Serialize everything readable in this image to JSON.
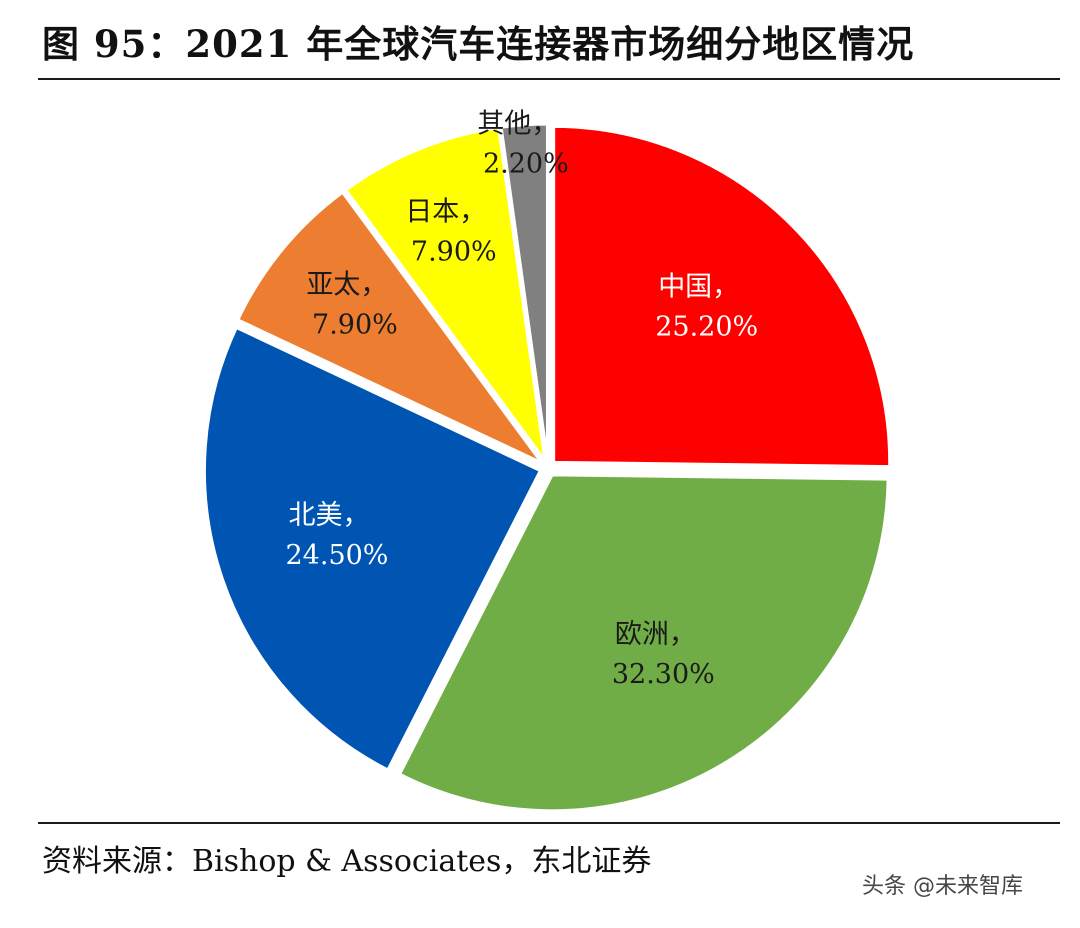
{
  "header": {
    "title": "图 95：2021 年全球汽车连接器市场细分地区情况"
  },
  "footer": {
    "source": "资料来源：Bishop & Associates，东北证券",
    "watermark": "头条 @未来智库"
  },
  "chart_data": {
    "type": "pie",
    "title": "图 95：2021 年全球汽车连接器市场细分地区情况",
    "unit": "%",
    "start_angle_deg": 0,
    "direction": "clockwise",
    "exploded": true,
    "slices": [
      {
        "name": "中国",
        "value": 25.2,
        "display": "25.20%",
        "color": "#ff0000",
        "label_color": "#ffffff"
      },
      {
        "name": "欧洲",
        "value": 32.3,
        "display": "32.30%",
        "color": "#70ad47",
        "label_color": "#1a1a1a"
      },
      {
        "name": "北美",
        "value": 24.5,
        "display": "24.50%",
        "color": "#0055b3",
        "label_color": "#ffffff"
      },
      {
        "name": "亚太",
        "value": 7.9,
        "display": "7.90%",
        "color": "#ed7d31",
        "label_color": "#1a1a1a"
      },
      {
        "name": "日本",
        "value": 7.9,
        "display": "7.90%",
        "color": "#ffff00",
        "label_color": "#1a1a1a"
      },
      {
        "name": "其他",
        "value": 2.2,
        "display": "2.20%",
        "color": "#808080",
        "label_color": "#1a1a1a"
      }
    ]
  }
}
